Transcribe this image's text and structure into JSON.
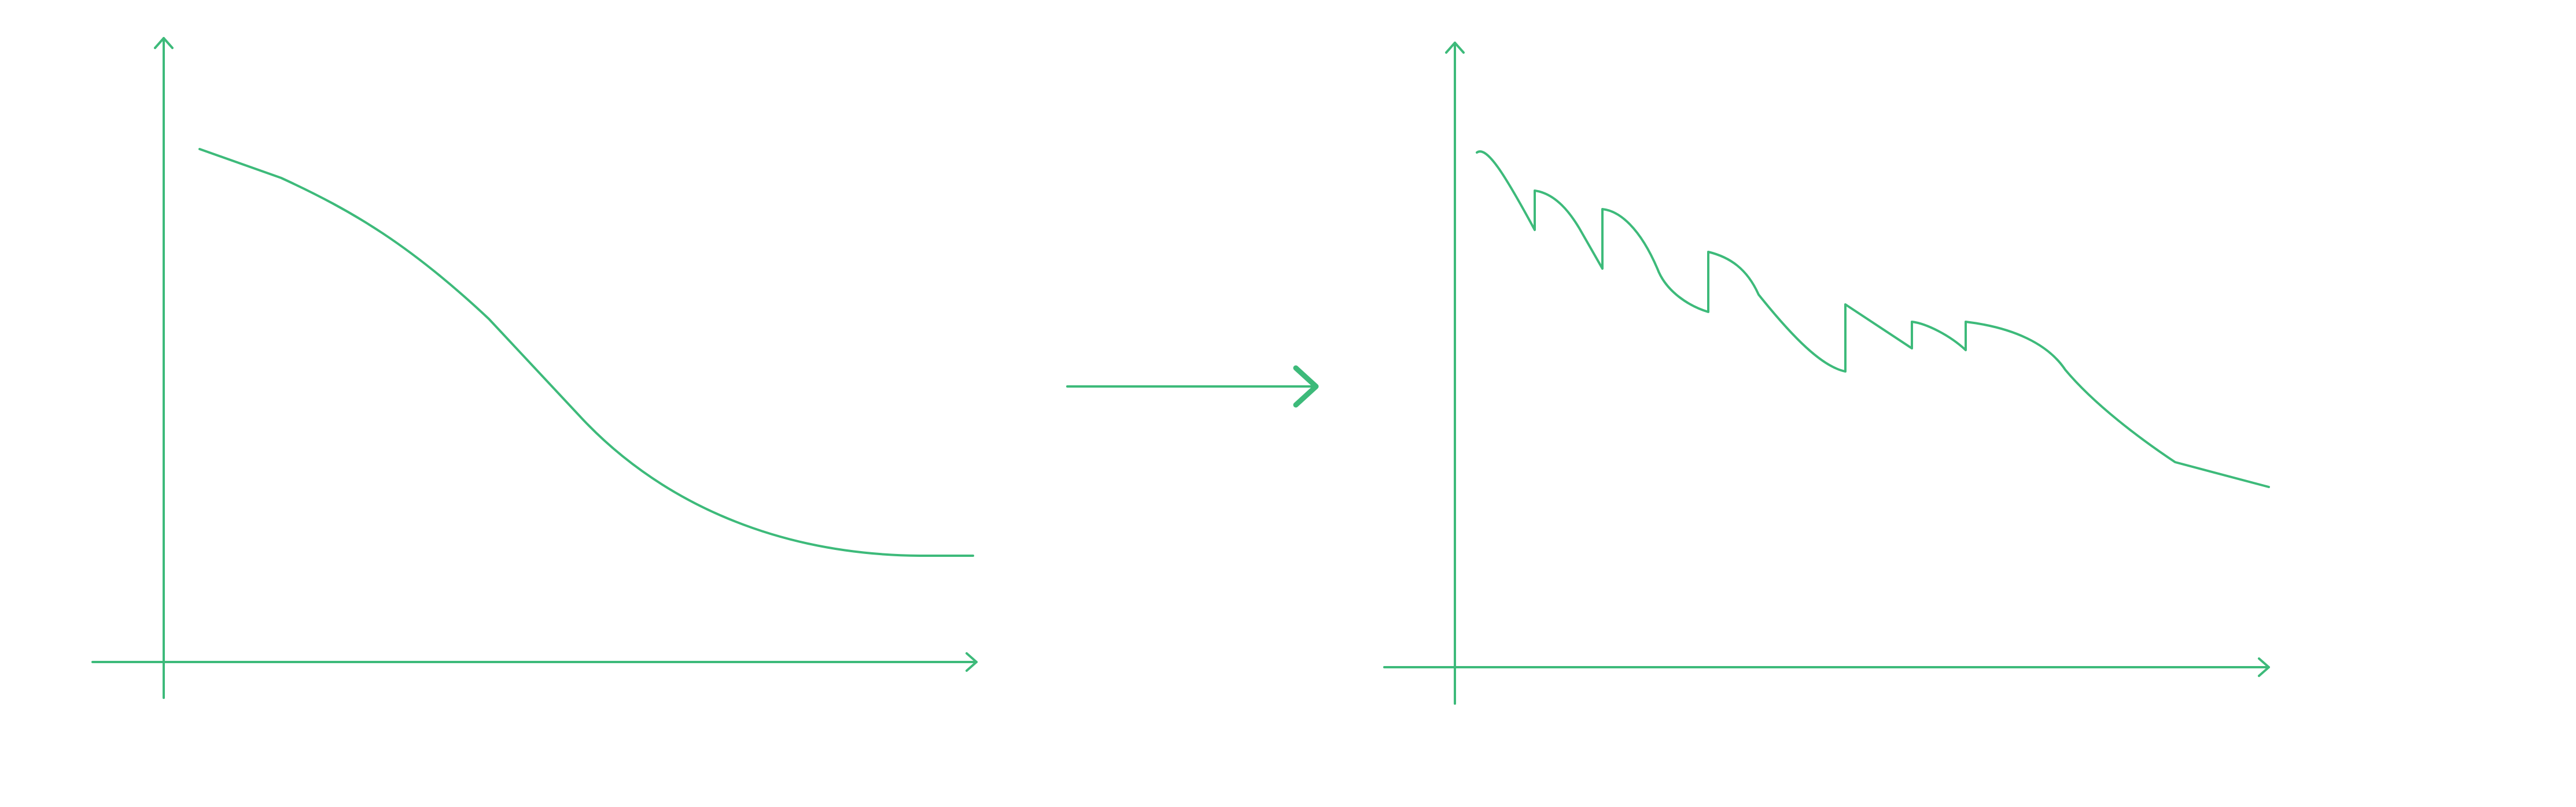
{
  "colors": {
    "stroke": "#3dba7a",
    "background": "#ffffff"
  },
  "panels": [
    {
      "name": "smooth-decline-graph",
      "curve_style": "smooth"
    },
    {
      "name": "jagged-decline-graph",
      "curve_style": "sawtooth"
    }
  ],
  "connector": {
    "icon": "right-arrow-icon"
  }
}
